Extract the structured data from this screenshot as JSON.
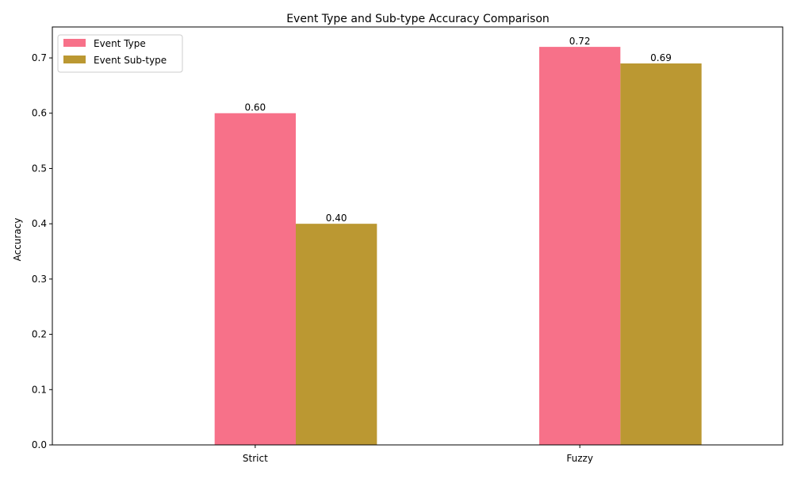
{
  "chart_data": {
    "type": "bar",
    "title": "Event Type and Sub-type Accuracy Comparison",
    "xlabel": "",
    "ylabel": "Accuracy",
    "categories": [
      "Strict",
      "Fuzzy"
    ],
    "series": [
      {
        "name": "Event Type",
        "values": [
          0.6,
          0.72
        ],
        "color": "#f77189"
      },
      {
        "name": "Event Sub-type",
        "values": [
          0.4,
          0.69
        ],
        "color": "#bb9832"
      }
    ],
    "data_labels": [
      [
        "0.60",
        "0.72"
      ],
      [
        "0.40",
        "0.69"
      ]
    ],
    "ylim": [
      0,
      0.756
    ],
    "yticks": [
      0.0,
      0.1,
      0.2,
      0.3,
      0.4,
      0.5,
      0.6,
      0.7
    ],
    "ytick_labels": [
      "0.0",
      "0.1",
      "0.2",
      "0.3",
      "0.4",
      "0.5",
      "0.6",
      "0.7"
    ],
    "grid": false,
    "legend_position": "top-left"
  }
}
